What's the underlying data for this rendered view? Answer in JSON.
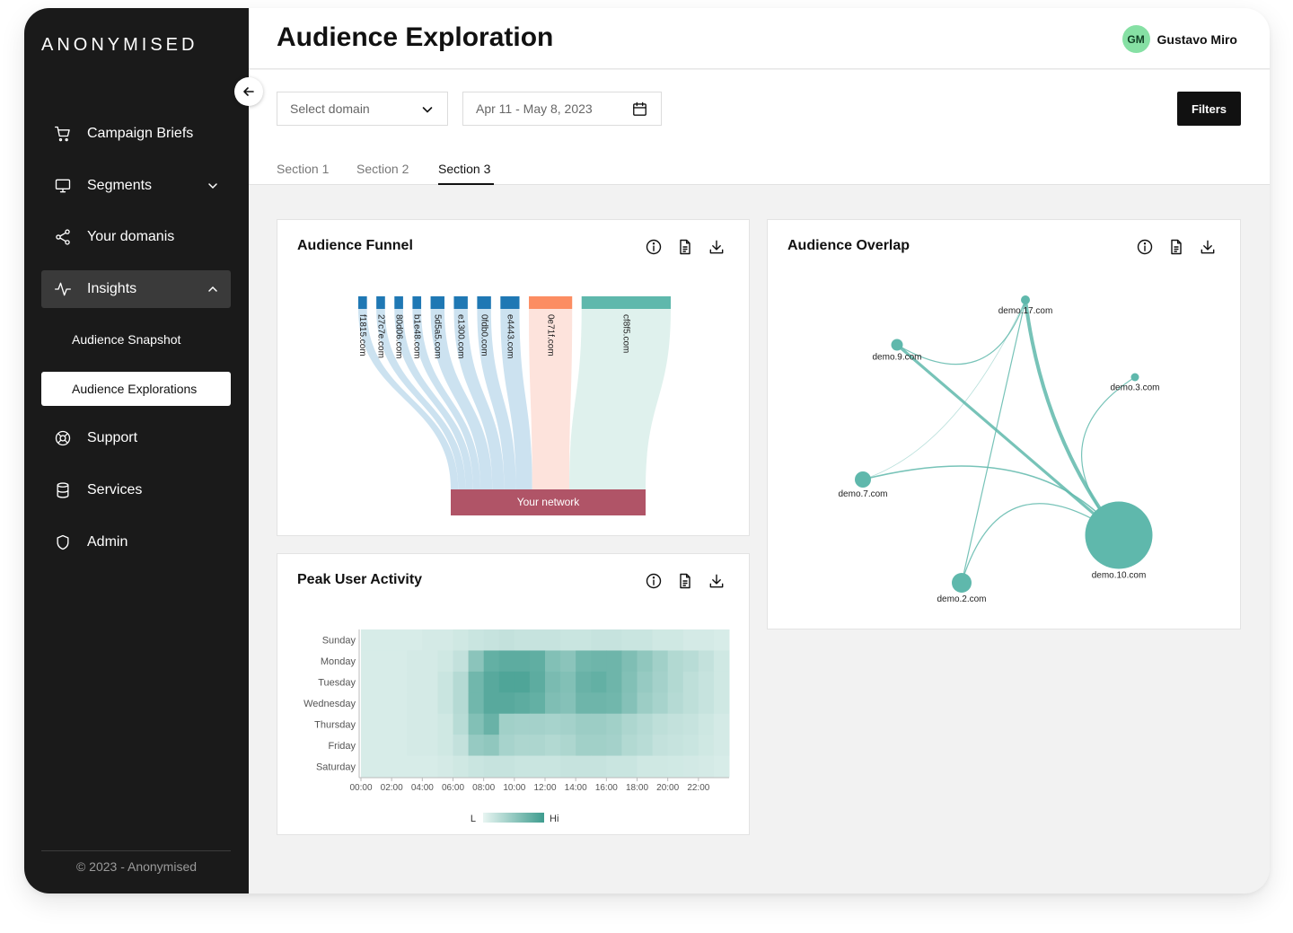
{
  "brand": {
    "logo": "ANONYMISED"
  },
  "sidebar": {
    "items": [
      {
        "label": "Campaign Briefs",
        "icon": "cart-icon"
      },
      {
        "label": "Segments",
        "icon": "monitor-icon"
      },
      {
        "label": "Your domanis",
        "icon": "share-icon"
      },
      {
        "label": "Insights",
        "icon": "activity-icon"
      },
      {
        "label": "Support",
        "icon": "lifebuoy-icon"
      },
      {
        "label": "Services",
        "icon": "database-icon"
      },
      {
        "label": "Admin",
        "icon": "shield-icon"
      }
    ],
    "insights_sub": [
      {
        "label": "Audience Snapshot"
      },
      {
        "label": "Audience Explorations"
      }
    ],
    "copyright": "© 2023 - Anonymised"
  },
  "header": {
    "title": "Audience Exploration",
    "user": {
      "initials": "GM",
      "name": "Gustavo Miro"
    }
  },
  "controls": {
    "domain_placeholder": "Select domain",
    "date_range": "Apr 11 - May 8, 2023",
    "filters_label": "Filters",
    "tabs": [
      {
        "label": "Section 1"
      },
      {
        "label": "Section 2"
      },
      {
        "label": "Section 3"
      }
    ],
    "active_tab": "Section 3"
  },
  "colors": {
    "sidebar_bg": "#1a1a1a",
    "accent_teal": "#5fb8ac",
    "funnel_blue": "#1f78b4",
    "funnel_orange": "#fc8d62",
    "network_bar": "#b05467",
    "avatar_green": "#86e0a4"
  },
  "cards": {
    "funnel": {
      "title": "Audience Funnel"
    },
    "activity": {
      "title": "Peak User Activity"
    },
    "overlap": {
      "title": "Audience Overlap"
    }
  },
  "chart_data": [
    {
      "type": "sankey",
      "title": "Audience Funnel",
      "sources": [
        {
          "name": "f1815.com",
          "value": 1
        },
        {
          "name": "27c7e.com",
          "value": 1
        },
        {
          "name": "80d06.com",
          "value": 1
        },
        {
          "name": "b1e48.com",
          "value": 1
        },
        {
          "name": "5d5a5.com",
          "value": 1.6
        },
        {
          "name": "e1300.com",
          "value": 1.6
        },
        {
          "name": "0fdb0.com",
          "value": 1.6
        },
        {
          "name": "e4443.com",
          "value": 2.2
        },
        {
          "name": "0e71f.com",
          "value": 5
        },
        {
          "name": "cf8f5.com",
          "value": 10.3
        }
      ],
      "target": "Your network"
    },
    {
      "type": "heatmap",
      "title": "Peak User Activity",
      "y_categories": [
        "Sunday",
        "Monday",
        "Tuesday",
        "Wednesday",
        "Thursday",
        "Friday",
        "Saturday"
      ],
      "x_ticks": [
        "00:00",
        "02:00",
        "04:00",
        "06:00",
        "08:00",
        "10:00",
        "12:00",
        "14:00",
        "16:00",
        "18:00",
        "20:00",
        "22:00"
      ],
      "legend": {
        "low": "L",
        "high": "Hi"
      },
      "values": [
        [
          0.1,
          0.1,
          0.1,
          0.1,
          0.12,
          0.12,
          0.15,
          0.18,
          0.2,
          0.22,
          0.2,
          0.2,
          0.2,
          0.18,
          0.18,
          0.2,
          0.2,
          0.18,
          0.18,
          0.15,
          0.15,
          0.12,
          0.12,
          0.1
        ],
        [
          0.1,
          0.1,
          0.1,
          0.12,
          0.12,
          0.15,
          0.22,
          0.55,
          0.78,
          0.82,
          0.82,
          0.8,
          0.6,
          0.55,
          0.7,
          0.72,
          0.72,
          0.62,
          0.52,
          0.42,
          0.32,
          0.28,
          0.22,
          0.15
        ],
        [
          0.1,
          0.1,
          0.1,
          0.12,
          0.12,
          0.18,
          0.3,
          0.7,
          0.85,
          0.9,
          0.9,
          0.82,
          0.65,
          0.6,
          0.75,
          0.78,
          0.72,
          0.6,
          0.48,
          0.4,
          0.32,
          0.25,
          0.2,
          0.15
        ],
        [
          0.1,
          0.1,
          0.1,
          0.12,
          0.12,
          0.18,
          0.3,
          0.7,
          0.85,
          0.85,
          0.82,
          0.78,
          0.62,
          0.58,
          0.72,
          0.72,
          0.7,
          0.58,
          0.45,
          0.38,
          0.3,
          0.25,
          0.2,
          0.15
        ],
        [
          0.1,
          0.1,
          0.1,
          0.12,
          0.12,
          0.15,
          0.28,
          0.6,
          0.75,
          0.42,
          0.4,
          0.4,
          0.38,
          0.4,
          0.45,
          0.45,
          0.42,
          0.35,
          0.3,
          0.25,
          0.22,
          0.2,
          0.16,
          0.12
        ],
        [
          0.1,
          0.1,
          0.1,
          0.12,
          0.12,
          0.15,
          0.22,
          0.48,
          0.52,
          0.38,
          0.35,
          0.35,
          0.32,
          0.35,
          0.42,
          0.42,
          0.4,
          0.32,
          0.28,
          0.22,
          0.2,
          0.18,
          0.15,
          0.12
        ],
        [
          0.1,
          0.1,
          0.1,
          0.1,
          0.1,
          0.12,
          0.15,
          0.18,
          0.2,
          0.2,
          0.18,
          0.18,
          0.18,
          0.2,
          0.2,
          0.2,
          0.18,
          0.18,
          0.15,
          0.15,
          0.14,
          0.13,
          0.12,
          0.1
        ]
      ]
    },
    {
      "type": "network",
      "title": "Audience Overlap",
      "nodes": [
        {
          "name": "demo.17.com",
          "size": 1
        },
        {
          "name": "demo.9.com",
          "size": 1.3
        },
        {
          "name": "demo.3.com",
          "size": 0.9
        },
        {
          "name": "demo.7.com",
          "size": 1.8
        },
        {
          "name": "demo.10.com",
          "size": 7.5
        },
        {
          "name": "demo.2.com",
          "size": 2.2
        }
      ],
      "links": [
        {
          "source": "demo.17.com",
          "target": "demo.10.com",
          "weight": 5
        },
        {
          "source": "demo.9.com",
          "target": "demo.10.com",
          "weight": 4
        },
        {
          "source": "demo.17.com",
          "target": "demo.9.com",
          "weight": 1.5
        },
        {
          "source": "demo.17.com",
          "target": "demo.7.com",
          "weight": 1
        },
        {
          "source": "demo.17.com",
          "target": "demo.2.com",
          "weight": 1.5
        },
        {
          "source": "demo.7.com",
          "target": "demo.10.com",
          "weight": 2
        },
        {
          "source": "demo.3.com",
          "target": "demo.10.com",
          "weight": 1.5
        },
        {
          "source": "demo.2.com",
          "target": "demo.10.com",
          "weight": 1.5
        }
      ]
    }
  ]
}
